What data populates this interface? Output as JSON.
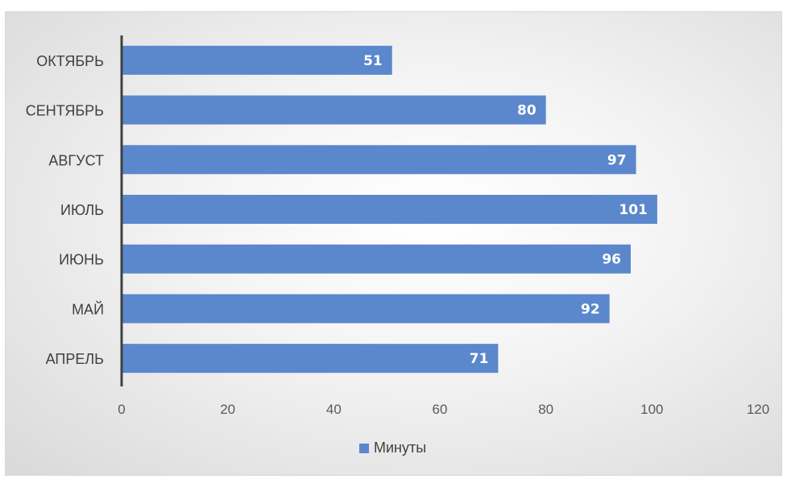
{
  "chart_data": {
    "type": "bar",
    "orientation": "horizontal",
    "categories": [
      "АПРЕЛЬ",
      "МАЙ",
      "ИЮНЬ",
      "ИЮЛЬ",
      "АВГУСТ",
      "СЕНТЯБРЬ",
      "ОКТЯБРЬ"
    ],
    "series": [
      {
        "name": "Минуты",
        "values": [
          71,
          92,
          96,
          101,
          97,
          80,
          51
        ],
        "color": "#5b87cc"
      }
    ],
    "xlim": [
      0,
      120
    ],
    "xticks": [
      0,
      20,
      40,
      60,
      80,
      100,
      120
    ],
    "title": "",
    "xlabel": "",
    "ylabel": "",
    "grid": false,
    "legend_position": "bottom",
    "data_labels": true
  }
}
